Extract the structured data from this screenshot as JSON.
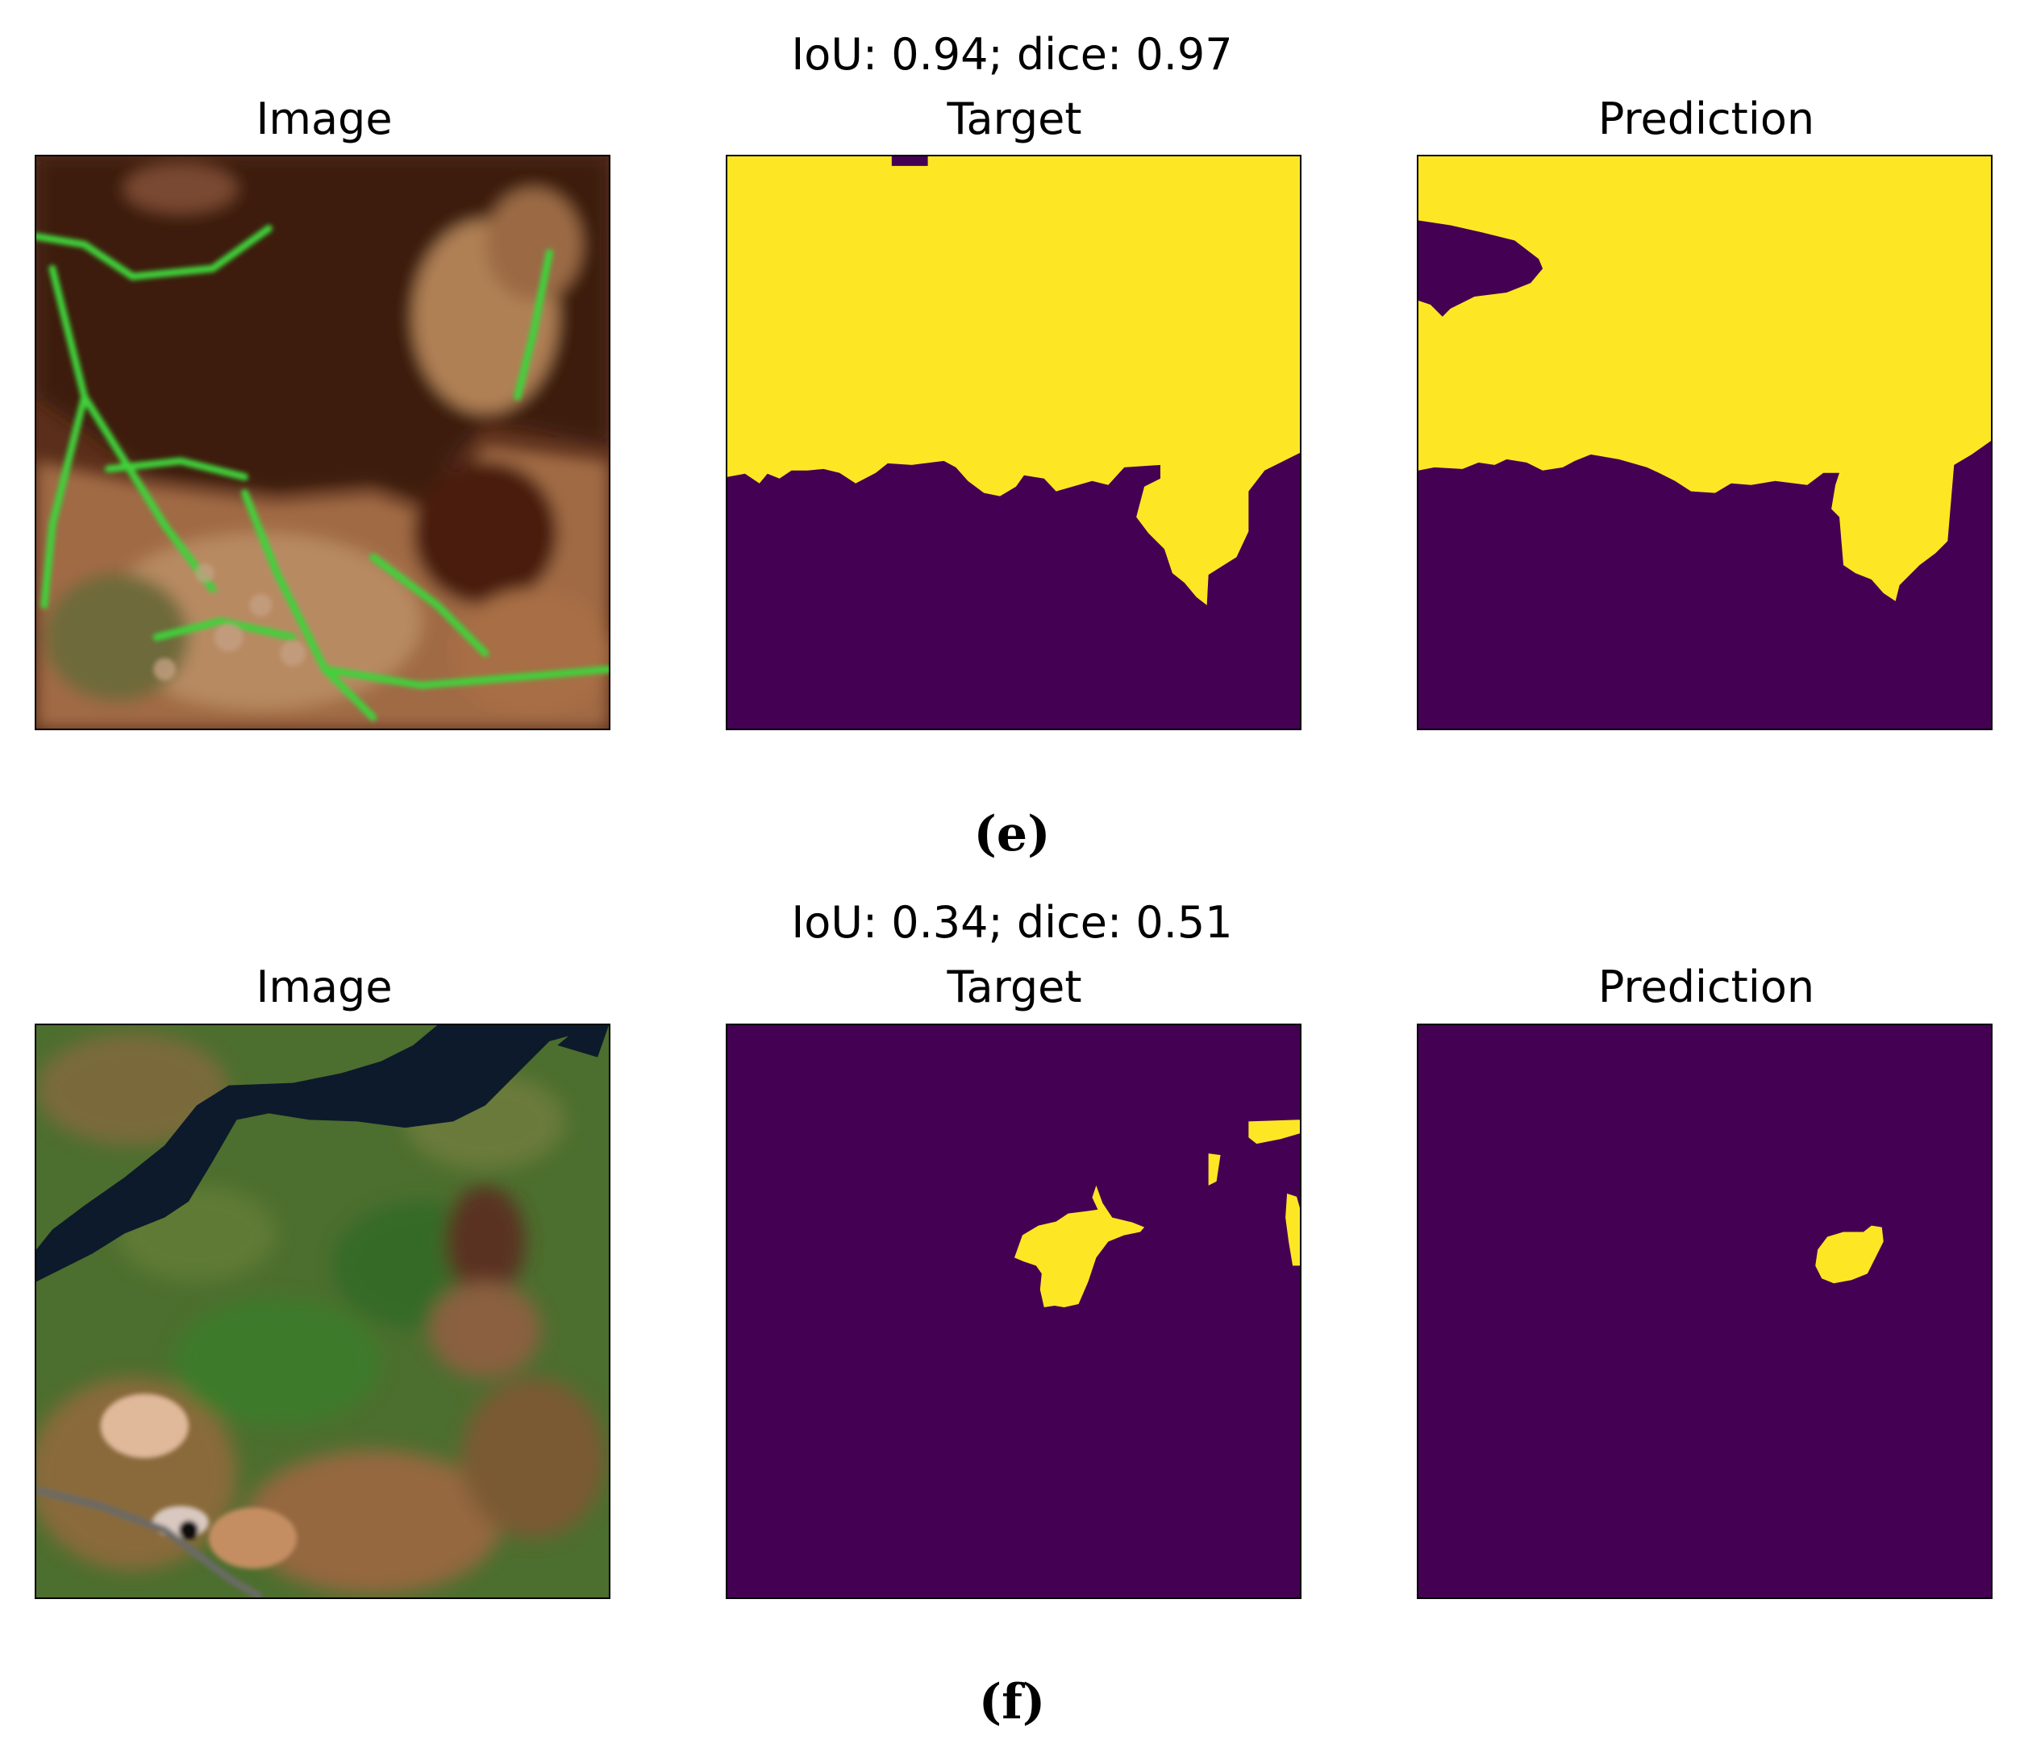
{
  "colors": {
    "mask_on": "#fde725",
    "mask_off": "#440154",
    "border": "#000000"
  },
  "rows": [
    {
      "metric": "IoU: 0.94; dice: 0.97",
      "titles": {
        "image": "Image",
        "target": "Target",
        "prediction": "Prediction"
      },
      "caption": "(e)"
    },
    {
      "metric": "IoU: 0.34; dice: 0.51",
      "titles": {
        "image": "Image",
        "target": "Target",
        "prediction": "Prediction"
      },
      "caption": "(f)"
    }
  ]
}
